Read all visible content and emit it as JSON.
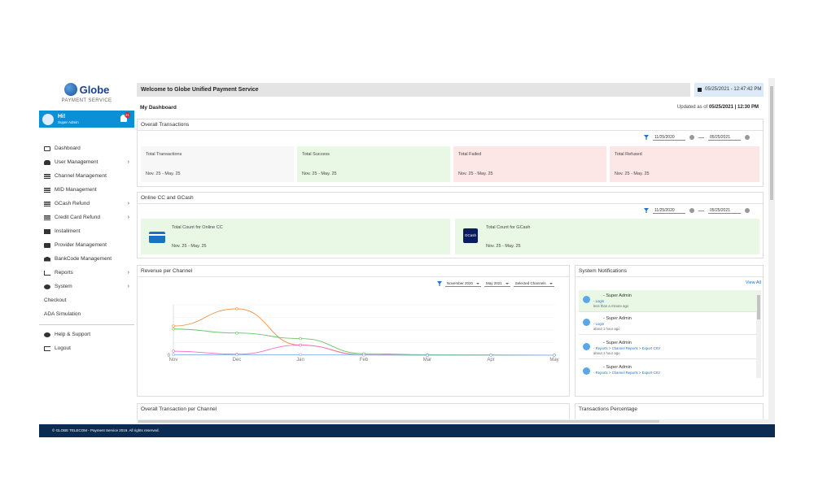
{
  "brand": {
    "name": "Globe",
    "sub": "PAYMENT SERVICE"
  },
  "user": {
    "greeting": "Hi!",
    "role": "Super Admin",
    "badge": "21"
  },
  "menu": [
    {
      "label": "Dashboard",
      "icon": "monitor-icon",
      "chevron": false
    },
    {
      "label": "User Management",
      "icon": "users-icon",
      "chevron": true
    },
    {
      "label": "Channel Management",
      "icon": "list-icon",
      "chevron": false
    },
    {
      "label": "MID Management",
      "icon": "list-icon",
      "chevron": false
    },
    {
      "label": "GCash Refund",
      "icon": "list-icon",
      "chevron": true
    },
    {
      "label": "Credit Card Refund",
      "icon": "list-icon",
      "chevron": true
    },
    {
      "label": "Installment",
      "icon": "calendar-icon",
      "chevron": false
    },
    {
      "label": "Provider Management",
      "icon": "id-card-icon",
      "chevron": false
    },
    {
      "label": "BankCode Management",
      "icon": "bank-icon",
      "chevron": false
    },
    {
      "label": "Reports",
      "icon": "chart-icon",
      "chevron": true
    },
    {
      "label": "System",
      "icon": "gears-icon",
      "chevron": true
    },
    {
      "label": "Checkout",
      "icon": "",
      "chevron": false
    },
    {
      "label": "ADA Simulation",
      "icon": "",
      "chevron": false
    }
  ],
  "menu_bottom": [
    {
      "label": "Help & Support",
      "icon": "question-icon"
    },
    {
      "label": "Logout",
      "icon": "logout-icon"
    }
  ],
  "header": {
    "welcome": "Welcome to Globe Unified Payment Service",
    "datetime": "05/25/2021 - 12:47:42 PM",
    "dashboard_title": "My Dashboard",
    "updated_prefix": "Updated as of ",
    "updated_value": "05/25/2021 | 12:30 PM"
  },
  "overall": {
    "title": "Overall Transactions",
    "date_from": "11/25/2020",
    "date_to": "05/25/2021",
    "cards": [
      {
        "title": "Total Transactions",
        "range": "Nov. 25 - May. 25"
      },
      {
        "title": "Total Success",
        "range": "Nov. 25 - May. 25"
      },
      {
        "title": "Total Failed",
        "range": "Nov. 25 - May. 25"
      },
      {
        "title": "Total Refused",
        "range": "Nov. 25 - May. 25"
      }
    ]
  },
  "online": {
    "title": "Online CC and GCash",
    "date_from": "11/25/2020",
    "date_to": "05/25/2021",
    "cards": [
      {
        "title": "Total Count for Online CC",
        "range": "Nov. 25 - May. 25",
        "icon": "credit-card-icon"
      },
      {
        "title": "Total Count for GCash",
        "range": "Nov. 25 - May. 25",
        "icon": "gcash-logo-icon",
        "icon_text": "GCash"
      }
    ]
  },
  "revenue": {
    "title": "Revenue per Channel",
    "from_month": "November 2020",
    "to_month": "May 2021",
    "channels": "Selected Channels"
  },
  "chart_data": {
    "type": "line",
    "categories": [
      "Nov",
      "Dec",
      "Jan",
      "Feb",
      "Mar",
      "Apr",
      "May"
    ],
    "y_tick_labels": [
      "0"
    ],
    "ylim": [
      0,
      100
    ],
    "grid": true,
    "legend": "none",
    "series": [
      {
        "color": "#f28c3c",
        "values": [
          58,
          92,
          20,
          1,
          0.5,
          0.5,
          0
        ]
      },
      {
        "color": "#6cc46c",
        "values": [
          52,
          44,
          33,
          3,
          1,
          0.5,
          0
        ]
      },
      {
        "color": "#f070c8",
        "values": [
          8,
          2,
          20,
          0.5,
          0,
          0,
          0
        ]
      },
      {
        "color": "#8ab4f0",
        "values": [
          1,
          1,
          1,
          0.5,
          0,
          0,
          0
        ]
      }
    ]
  },
  "notifications": {
    "title": "System Notifications",
    "view_all": "View All",
    "items": [
      {
        "name": "- Super Admin",
        "path": "- Login",
        "time": "less than a minute ago",
        "active": true
      },
      {
        "name": "- Super Admin",
        "path": "- Login",
        "time": "about 1 hour ago",
        "active": false
      },
      {
        "name": "- Super Admin",
        "path": "- Reports > Channel Reports > Export CSV",
        "time": "about 1 hour ago",
        "active": false
      },
      {
        "name": "- Super Admin",
        "path": "- Reports > Channel Reports > Export CSV",
        "time": "",
        "active": false
      }
    ]
  },
  "bottom_panels": {
    "left": "Overall Transaction per Channel",
    "right": "Transactions Percentage"
  },
  "footer": "© GLOBE TELECOM - Payment Service 2019. All rights reserved."
}
